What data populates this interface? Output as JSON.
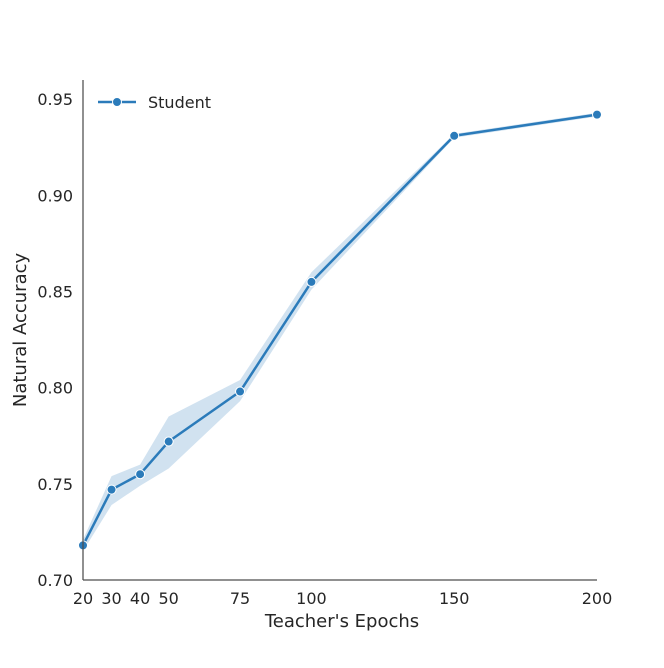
{
  "chart_data": {
    "type": "line",
    "xlabel": "Teacher's Epochs",
    "ylabel": "Natural Accuracy",
    "x": [
      20,
      30,
      40,
      50,
      75,
      100,
      150,
      200
    ],
    "xticks": [
      20,
      30,
      40,
      50,
      75,
      100,
      150,
      200
    ],
    "xtick_labels": [
      "20",
      "30",
      "40",
      "50",
      "75",
      "100",
      "150",
      "200"
    ],
    "xlim": [
      20,
      200
    ],
    "ylim": [
      0.7,
      0.96
    ],
    "yticks": [
      0.7,
      0.75,
      0.8,
      0.85,
      0.9,
      0.95
    ],
    "ytick_labels": [
      "0.70",
      "0.75",
      "0.80",
      "0.85",
      "0.90",
      "0.95"
    ],
    "series": [
      {
        "name": "Student",
        "color": "#2b7bba",
        "band_color": "#b9d2e8",
        "marker": "circle",
        "values": [
          0.718,
          0.747,
          0.755,
          0.772,
          0.798,
          0.855,
          0.931,
          0.942
        ],
        "lower": [
          0.715,
          0.739,
          0.749,
          0.758,
          0.793,
          0.851,
          0.93,
          0.941
        ],
        "upper": [
          0.721,
          0.754,
          0.76,
          0.785,
          0.804,
          0.86,
          0.932,
          0.943
        ]
      }
    ],
    "legend_position": "top-left",
    "grid": false
  }
}
